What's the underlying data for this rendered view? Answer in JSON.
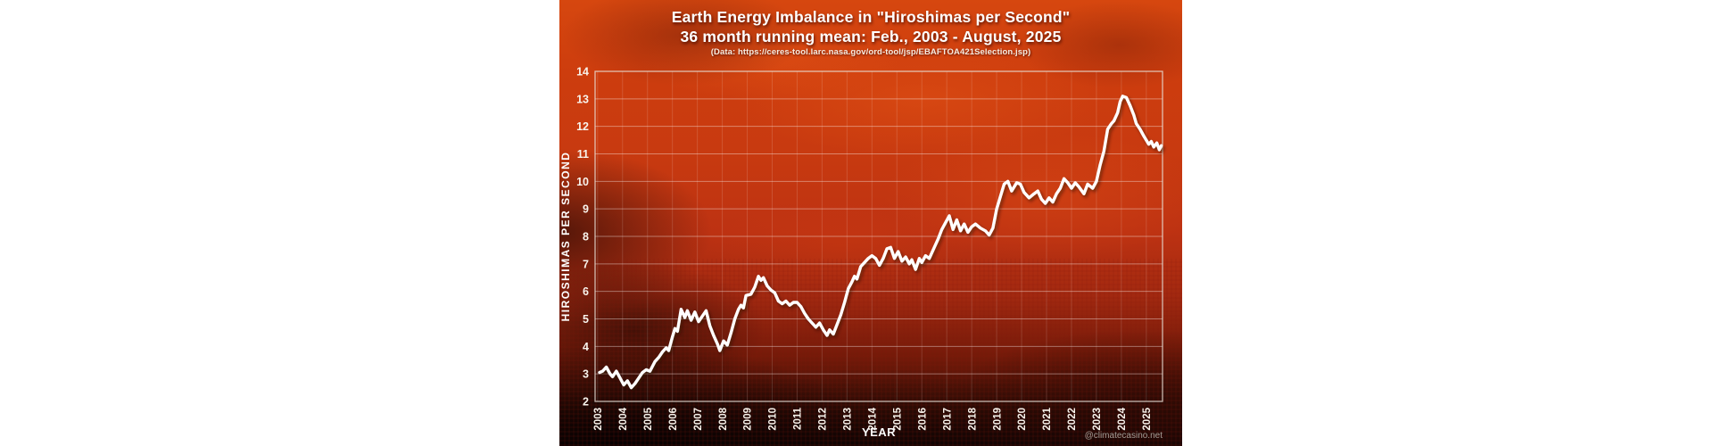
{
  "page": {
    "background": "#ffffff"
  },
  "poster": {
    "title": "Earth Energy Imbalance in \"Hiroshimas per Second\"",
    "subtitle": "36 month running mean: Feb., 2003 - August, 2025",
    "source": "(Data: https://ceres-tool.larc.nasa.gov/ord-tool/jsp/EBAFTOA421Selection.jsp)",
    "credit": "@climatecasino.net",
    "colors": {
      "line": "#ffffff",
      "grid": "#ffffff",
      "text": "#ffffff",
      "credit": "#a59c95",
      "background_top": "#d6470f",
      "background_bottom": "#140404"
    }
  },
  "chart_data": {
    "type": "line",
    "title": "Earth Energy Imbalance in \"Hiroshimas per Second\"",
    "subtitle": "36 month running mean: Feb., 2003 - August, 2025",
    "source": "(Data: https://ceres-tool.larc.nasa.gov/ord-tool/jsp/EBAFTOA421Selection.jsp)",
    "xlabel": "YEAR",
    "ylabel": "HIROSHIMAS PER SECOND",
    "credit": "@climatecasino.net",
    "xlim": [
      2002.9,
      2025.65
    ],
    "ylim": [
      2,
      14
    ],
    "x_ticks": [
      2003,
      2004,
      2005,
      2006,
      2007,
      2008,
      2009,
      2010,
      2011,
      2012,
      2013,
      2014,
      2015,
      2016,
      2017,
      2018,
      2019,
      2020,
      2021,
      2022,
      2023,
      2024,
      2025
    ],
    "y_ticks": [
      2,
      3,
      4,
      5,
      6,
      7,
      8,
      9,
      10,
      11,
      12,
      13,
      14
    ],
    "grid": true,
    "legend": false,
    "line_color": "#ffffff",
    "series": [
      {
        "name": "36 month running mean",
        "points": [
          [
            2003.08,
            3.05
          ],
          [
            2003.2,
            3.1
          ],
          [
            2003.35,
            3.25
          ],
          [
            2003.5,
            3.0
          ],
          [
            2003.6,
            2.9
          ],
          [
            2003.75,
            3.1
          ],
          [
            2003.9,
            2.85
          ],
          [
            2004.05,
            2.6
          ],
          [
            2004.2,
            2.75
          ],
          [
            2004.35,
            2.5
          ],
          [
            2004.5,
            2.65
          ],
          [
            2004.65,
            2.85
          ],
          [
            2004.8,
            3.05
          ],
          [
            2004.95,
            3.15
          ],
          [
            2005.1,
            3.1
          ],
          [
            2005.3,
            3.45
          ],
          [
            2005.45,
            3.6
          ],
          [
            2005.6,
            3.8
          ],
          [
            2005.75,
            3.95
          ],
          [
            2005.85,
            3.85
          ],
          [
            2006.0,
            4.35
          ],
          [
            2006.1,
            4.65
          ],
          [
            2006.2,
            4.55
          ],
          [
            2006.35,
            5.35
          ],
          [
            2006.5,
            5.05
          ],
          [
            2006.6,
            5.3
          ],
          [
            2006.75,
            4.95
          ],
          [
            2006.9,
            5.25
          ],
          [
            2007.05,
            4.9
          ],
          [
            2007.2,
            5.1
          ],
          [
            2007.35,
            5.3
          ],
          [
            2007.5,
            4.75
          ],
          [
            2007.65,
            4.4
          ],
          [
            2007.8,
            4.1
          ],
          [
            2007.9,
            3.85
          ],
          [
            2008.05,
            4.2
          ],
          [
            2008.2,
            4.05
          ],
          [
            2008.35,
            4.5
          ],
          [
            2008.5,
            5.0
          ],
          [
            2008.65,
            5.35
          ],
          [
            2008.75,
            5.5
          ],
          [
            2008.85,
            5.4
          ],
          [
            2008.95,
            5.85
          ],
          [
            2009.15,
            5.9
          ],
          [
            2009.3,
            6.15
          ],
          [
            2009.45,
            6.55
          ],
          [
            2009.55,
            6.4
          ],
          [
            2009.65,
            6.5
          ],
          [
            2009.8,
            6.2
          ],
          [
            2009.95,
            6.05
          ],
          [
            2010.1,
            5.95
          ],
          [
            2010.25,
            5.65
          ],
          [
            2010.4,
            5.55
          ],
          [
            2010.55,
            5.65
          ],
          [
            2010.7,
            5.5
          ],
          [
            2010.85,
            5.6
          ],
          [
            2011.0,
            5.6
          ],
          [
            2011.15,
            5.45
          ],
          [
            2011.3,
            5.2
          ],
          [
            2011.45,
            5.0
          ],
          [
            2011.6,
            4.85
          ],
          [
            2011.75,
            4.7
          ],
          [
            2011.9,
            4.85
          ],
          [
            2012.05,
            4.6
          ],
          [
            2012.2,
            4.4
          ],
          [
            2012.3,
            4.6
          ],
          [
            2012.45,
            4.45
          ],
          [
            2012.6,
            4.8
          ],
          [
            2012.75,
            5.15
          ],
          [
            2012.9,
            5.6
          ],
          [
            2013.05,
            6.1
          ],
          [
            2013.2,
            6.35
          ],
          [
            2013.3,
            6.55
          ],
          [
            2013.4,
            6.45
          ],
          [
            2013.55,
            6.9
          ],
          [
            2013.7,
            7.05
          ],
          [
            2013.85,
            7.2
          ],
          [
            2014.0,
            7.3
          ],
          [
            2014.15,
            7.2
          ],
          [
            2014.3,
            6.95
          ],
          [
            2014.45,
            7.2
          ],
          [
            2014.6,
            7.55
          ],
          [
            2014.75,
            7.6
          ],
          [
            2014.9,
            7.2
          ],
          [
            2015.05,
            7.45
          ],
          [
            2015.2,
            7.1
          ],
          [
            2015.35,
            7.25
          ],
          [
            2015.5,
            7.0
          ],
          [
            2015.6,
            7.15
          ],
          [
            2015.75,
            6.8
          ],
          [
            2015.9,
            7.2
          ],
          [
            2016.0,
            7.05
          ],
          [
            2016.15,
            7.3
          ],
          [
            2016.3,
            7.2
          ],
          [
            2016.5,
            7.6
          ],
          [
            2016.65,
            7.9
          ],
          [
            2016.8,
            8.25
          ],
          [
            2016.95,
            8.5
          ],
          [
            2017.1,
            8.75
          ],
          [
            2017.25,
            8.25
          ],
          [
            2017.4,
            8.6
          ],
          [
            2017.55,
            8.2
          ],
          [
            2017.7,
            8.45
          ],
          [
            2017.85,
            8.15
          ],
          [
            2018.0,
            8.35
          ],
          [
            2018.15,
            8.45
          ],
          [
            2018.35,
            8.3
          ],
          [
            2018.55,
            8.2
          ],
          [
            2018.7,
            8.05
          ],
          [
            2018.85,
            8.3
          ],
          [
            2019.0,
            9.0
          ],
          [
            2019.15,
            9.45
          ],
          [
            2019.3,
            9.9
          ],
          [
            2019.45,
            10.0
          ],
          [
            2019.6,
            9.65
          ],
          [
            2019.8,
            9.95
          ],
          [
            2019.95,
            9.9
          ],
          [
            2020.1,
            9.6
          ],
          [
            2020.3,
            9.4
          ],
          [
            2020.5,
            9.55
          ],
          [
            2020.65,
            9.65
          ],
          [
            2020.8,
            9.35
          ],
          [
            2020.95,
            9.2
          ],
          [
            2021.1,
            9.4
          ],
          [
            2021.25,
            9.25
          ],
          [
            2021.4,
            9.55
          ],
          [
            2021.55,
            9.75
          ],
          [
            2021.7,
            10.1
          ],
          [
            2021.85,
            9.95
          ],
          [
            2022.0,
            9.75
          ],
          [
            2022.15,
            9.95
          ],
          [
            2022.3,
            9.8
          ],
          [
            2022.5,
            9.55
          ],
          [
            2022.65,
            9.9
          ],
          [
            2022.85,
            9.75
          ],
          [
            2023.0,
            10.0
          ],
          [
            2023.15,
            10.6
          ],
          [
            2023.3,
            11.1
          ],
          [
            2023.45,
            11.9
          ],
          [
            2023.6,
            12.1
          ],
          [
            2023.7,
            12.2
          ],
          [
            2023.85,
            12.5
          ],
          [
            2023.95,
            12.9
          ],
          [
            2024.05,
            13.1
          ],
          [
            2024.2,
            13.05
          ],
          [
            2024.35,
            12.75
          ],
          [
            2024.5,
            12.4
          ],
          [
            2024.6,
            12.1
          ],
          [
            2024.75,
            11.9
          ],
          [
            2024.9,
            11.65
          ],
          [
            2025.0,
            11.5
          ],
          [
            2025.1,
            11.35
          ],
          [
            2025.2,
            11.45
          ],
          [
            2025.3,
            11.25
          ],
          [
            2025.42,
            11.4
          ],
          [
            2025.52,
            11.15
          ],
          [
            2025.6,
            11.3
          ]
        ]
      }
    ]
  }
}
